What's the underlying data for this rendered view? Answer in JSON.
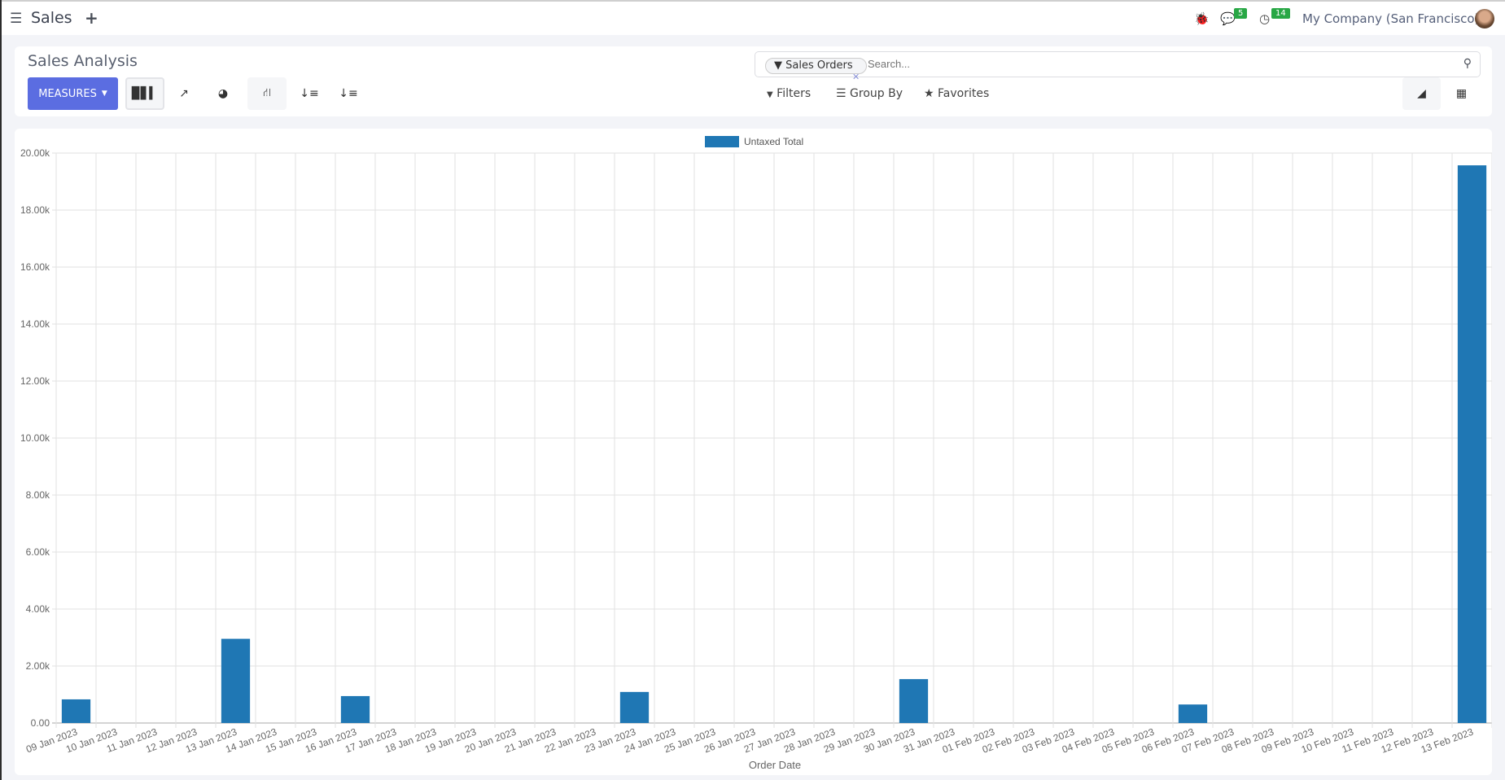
{
  "navbar": {
    "app_name": "Sales",
    "messages_count": "5",
    "activities_count": "14",
    "company": "My Company (San Francisco)"
  },
  "control_panel": {
    "title": "Sales Analysis",
    "measures_label": "MEASURES",
    "search": {
      "facet": "Sales Orders",
      "placeholder": "Search..."
    },
    "filters_label": "Filters",
    "group_by_label": "Group By",
    "favorites_label": "Favorites"
  },
  "colors": {
    "accent": "#5b6de1",
    "bar": "#1f77b4",
    "badge": "#28a745"
  },
  "chart_data": {
    "type": "bar",
    "xlabel": "Order Date",
    "ylabel": "",
    "ylim": [
      0,
      20000
    ],
    "yticks": [
      "0.00",
      "2.00k",
      "4.00k",
      "6.00k",
      "8.00k",
      "10.00k",
      "12.00k",
      "14.00k",
      "16.00k",
      "18.00k",
      "20.00k"
    ],
    "legend": "top",
    "grid": true,
    "categories": [
      "09 Jan 2023",
      "10 Jan 2023",
      "11 Jan 2023",
      "12 Jan 2023",
      "13 Jan 2023",
      "14 Jan 2023",
      "15 Jan 2023",
      "16 Jan 2023",
      "17 Jan 2023",
      "18 Jan 2023",
      "19 Jan 2023",
      "20 Jan 2023",
      "21 Jan 2023",
      "22 Jan 2023",
      "23 Jan 2023",
      "24 Jan 2023",
      "25 Jan 2023",
      "26 Jan 2023",
      "27 Jan 2023",
      "28 Jan 2023",
      "29 Jan 2023",
      "30 Jan 2023",
      "31 Jan 2023",
      "01 Feb 2023",
      "02 Feb 2023",
      "03 Feb 2023",
      "04 Feb 2023",
      "05 Feb 2023",
      "06 Feb 2023",
      "07 Feb 2023",
      "08 Feb 2023",
      "09 Feb 2023",
      "10 Feb 2023",
      "11 Feb 2023",
      "12 Feb 2023",
      "13 Feb 2023"
    ],
    "series": [
      {
        "name": "Untaxed Total",
        "values": [
          830,
          0,
          0,
          0,
          2955,
          0,
          0,
          945,
          0,
          0,
          0,
          0,
          0,
          0,
          1090,
          0,
          0,
          0,
          0,
          0,
          0,
          1540,
          0,
          0,
          0,
          0,
          0,
          0,
          650,
          0,
          0,
          0,
          0,
          0,
          0,
          19570
        ]
      }
    ]
  }
}
